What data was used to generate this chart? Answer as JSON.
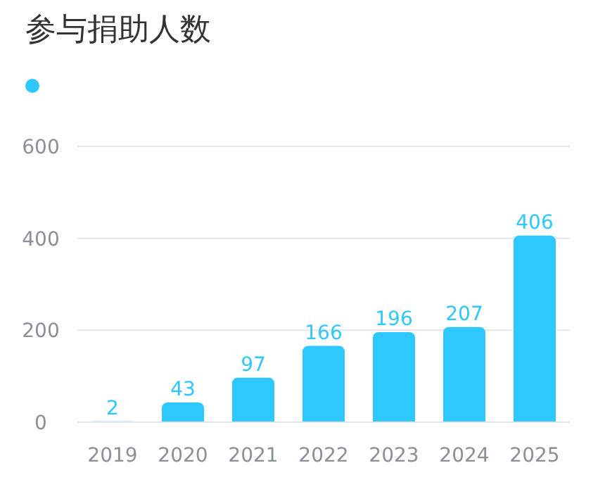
{
  "chart_data": {
    "type": "bar",
    "title": "参与捐助人数",
    "categories": [
      "2019",
      "2020",
      "2021",
      "2022",
      "2023",
      "2024",
      "2025"
    ],
    "values": [
      2,
      43,
      97,
      166,
      196,
      207,
      406
    ],
    "color": "#2ec7ff",
    "ylim": [
      0,
      600
    ],
    "yticks": [
      0,
      200,
      400,
      600
    ],
    "grid": "y",
    "data_labels": true
  }
}
